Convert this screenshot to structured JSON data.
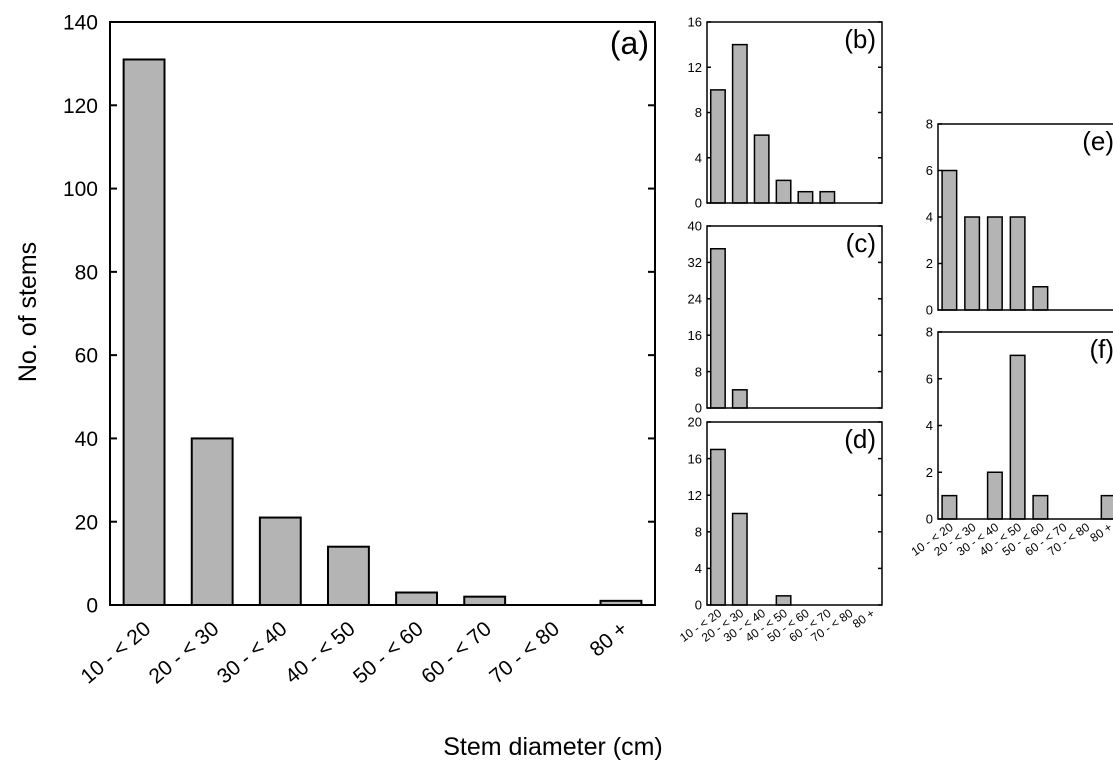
{
  "figure": {
    "xlabel": "Stem diameter (cm)",
    "ylabel": "No. of stems"
  },
  "colors": {
    "bar_fill": "#b4b4b4",
    "bar_stroke": "#000000",
    "axis": "#000000"
  },
  "chart_data": [
    {
      "type": "bar",
      "panel_label": "(a)",
      "categories": [
        "10 - < 20",
        "20 - < 30",
        "30 - < 40",
        "40 - < 50",
        "50 - < 60",
        "60 - < 70",
        "70 - < 80",
        "80 +"
      ],
      "values": [
        131,
        40,
        21,
        14,
        3,
        2,
        0,
        1
      ],
      "ylim": [
        0,
        140
      ],
      "yticks": [
        0,
        20,
        40,
        60,
        80,
        100,
        120,
        140
      ],
      "xlabel": "Stem diameter (cm)",
      "ylabel": "No. of stems",
      "grid": false
    },
    {
      "type": "bar",
      "panel_label": "(b)",
      "categories": [
        "10 - < 20",
        "20 - < 30",
        "30 - < 40",
        "40 - < 50",
        "50 - < 60",
        "60 - < 70",
        "70 - < 80",
        "80 +"
      ],
      "values": [
        10,
        14,
        6,
        2,
        1,
        1,
        0,
        0
      ],
      "ylim": [
        0,
        16
      ],
      "yticks": [
        0,
        4,
        8,
        12,
        16
      ],
      "grid": false
    },
    {
      "type": "bar",
      "panel_label": "(c)",
      "categories": [
        "10 - < 20",
        "20 - < 30",
        "30 - < 40",
        "40 - < 50",
        "50 - < 60",
        "60 - < 70",
        "70 - < 80",
        "80 +"
      ],
      "values": [
        35,
        4,
        0,
        0,
        0,
        0,
        0,
        0
      ],
      "ylim": [
        0,
        40
      ],
      "yticks": [
        0,
        8,
        16,
        24,
        32,
        40
      ],
      "grid": false
    },
    {
      "type": "bar",
      "panel_label": "(d)",
      "categories": [
        "10 - < 20",
        "20 - < 30",
        "30 - < 40",
        "40 - < 50",
        "50 - < 60",
        "60 - < 70",
        "70 - < 80",
        "80 +"
      ],
      "values": [
        17,
        10,
        0,
        1,
        0,
        0,
        0,
        0
      ],
      "ylim": [
        0,
        20
      ],
      "yticks": [
        0,
        4,
        8,
        12,
        16,
        20
      ],
      "grid": false
    },
    {
      "type": "bar",
      "panel_label": "(e)",
      "categories": [
        "10 - < 20",
        "20 - < 30",
        "30 - < 40",
        "40 - < 50",
        "50 - < 60",
        "60 - < 70",
        "70 - < 80",
        "80 +"
      ],
      "values": [
        6,
        4,
        4,
        4,
        1,
        0,
        0,
        0
      ],
      "ylim": [
        0,
        8
      ],
      "yticks": [
        0,
        2,
        4,
        6,
        8
      ],
      "grid": false
    },
    {
      "type": "bar",
      "panel_label": "(f)",
      "categories": [
        "10 - < 20",
        "20 - < 30",
        "30 - < 40",
        "40 - < 50",
        "50 - < 60",
        "60 - < 70",
        "70 - < 80",
        "80 +"
      ],
      "values": [
        1,
        0,
        2,
        7,
        1,
        0,
        0,
        1
      ],
      "ylim": [
        0,
        8
      ],
      "yticks": [
        0,
        2,
        4,
        6,
        8
      ],
      "grid": false
    }
  ]
}
